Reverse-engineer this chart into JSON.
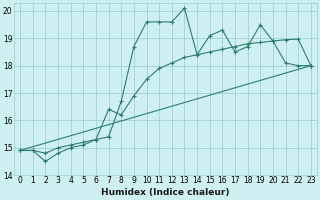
{
  "xlabel": "Humidex (Indice chaleur)",
  "ylabel": "",
  "bg_color": "#cff0f0",
  "line_color": "#2e7d6e",
  "grid_color": "#99cccc",
  "xlim": [
    -0.5,
    23.5
  ],
  "ylim": [
    14,
    20.3
  ],
  "xticks": [
    0,
    1,
    2,
    3,
    4,
    5,
    6,
    7,
    8,
    9,
    10,
    11,
    12,
    13,
    14,
    15,
    16,
    17,
    18,
    19,
    20,
    21,
    22,
    23
  ],
  "yticks": [
    14,
    15,
    16,
    17,
    18,
    19,
    20
  ],
  "line1_x": [
    0,
    1,
    2,
    3,
    4,
    5,
    6,
    7,
    8,
    9,
    10,
    11,
    12,
    13,
    14,
    15,
    16,
    17,
    18,
    19,
    20,
    21,
    22,
    23
  ],
  "line1_y": [
    14.9,
    14.9,
    14.5,
    14.8,
    15.0,
    15.1,
    15.3,
    15.4,
    16.7,
    18.7,
    19.6,
    19.6,
    19.6,
    20.1,
    18.4,
    19.1,
    19.3,
    18.5,
    18.7,
    19.5,
    18.9,
    18.1,
    18.0,
    18.0
  ],
  "line2_x": [
    0,
    1,
    2,
    3,
    4,
    5,
    6,
    7,
    8,
    9,
    10,
    11,
    12,
    13,
    14,
    15,
    16,
    17,
    18,
    19,
    20,
    21,
    22,
    23
  ],
  "line2_y": [
    14.9,
    14.9,
    14.8,
    15.0,
    15.1,
    15.2,
    15.3,
    16.4,
    16.2,
    16.9,
    17.5,
    17.9,
    18.1,
    18.3,
    18.4,
    18.5,
    18.6,
    18.7,
    18.8,
    18.85,
    18.9,
    18.95,
    18.97,
    18.0
  ],
  "line3_x": [
    0,
    23
  ],
  "line3_y": [
    14.9,
    18.0
  ]
}
